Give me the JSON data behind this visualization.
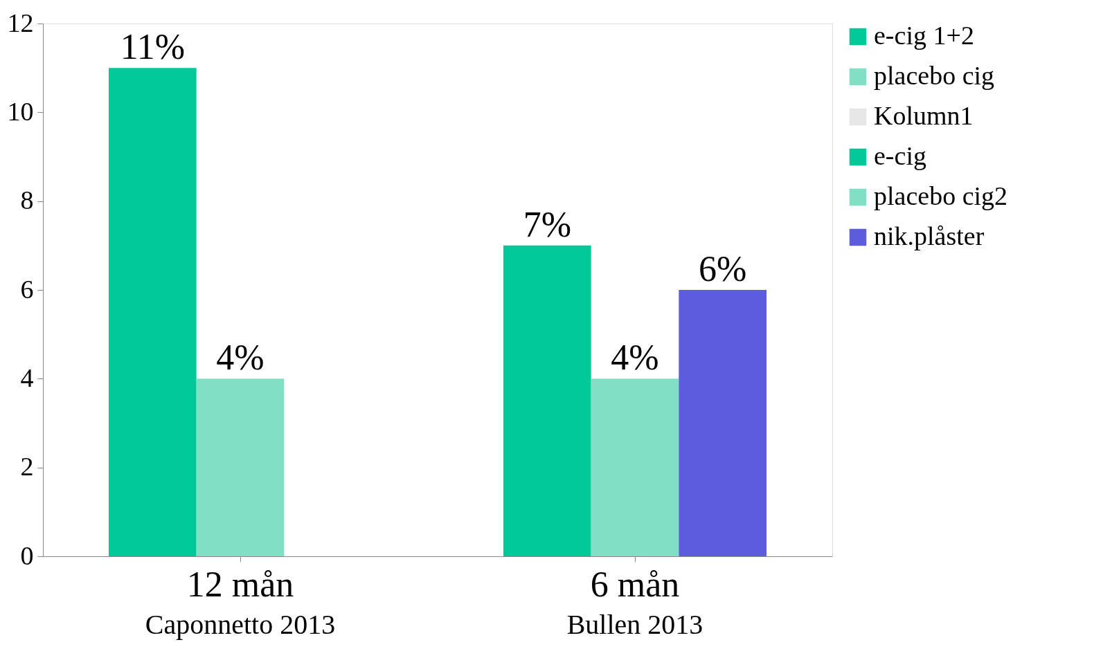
{
  "chart_data": {
    "type": "bar",
    "categories": [
      "12 mån",
      "6 mån"
    ],
    "series": [
      {
        "name": "e-cig 1+2",
        "color": "#00c896",
        "values": [
          11,
          null
        ],
        "value_labels": [
          "11%",
          null
        ]
      },
      {
        "name": "placebo cig",
        "color": "#7fe0c6",
        "values": [
          4,
          null
        ],
        "value_labels": [
          "4%",
          null
        ]
      },
      {
        "name": "Kolumn1",
        "color": "#e6e6e6",
        "values": [
          null,
          null
        ]
      },
      {
        "name": "e-cig",
        "color": "#00c896",
        "values": [
          null,
          7
        ],
        "value_labels": [
          null,
          "7%"
        ]
      },
      {
        "name": "placebo cig2",
        "color": "#7fe0c6",
        "values": [
          null,
          4
        ],
        "value_labels": [
          null,
          "4%"
        ]
      },
      {
        "name": "nik.plåster",
        "color": "#5c5cdc",
        "values": [
          null,
          6
        ],
        "value_labels": [
          null,
          "6%"
        ]
      }
    ],
    "ylim": [
      0,
      12
    ],
    "yticks": [
      0,
      2,
      4,
      6,
      8,
      10,
      12
    ],
    "grid": false,
    "legend": "right",
    "annotations": [
      "Caponnetto 2013",
      "Bullen 2013"
    ]
  }
}
